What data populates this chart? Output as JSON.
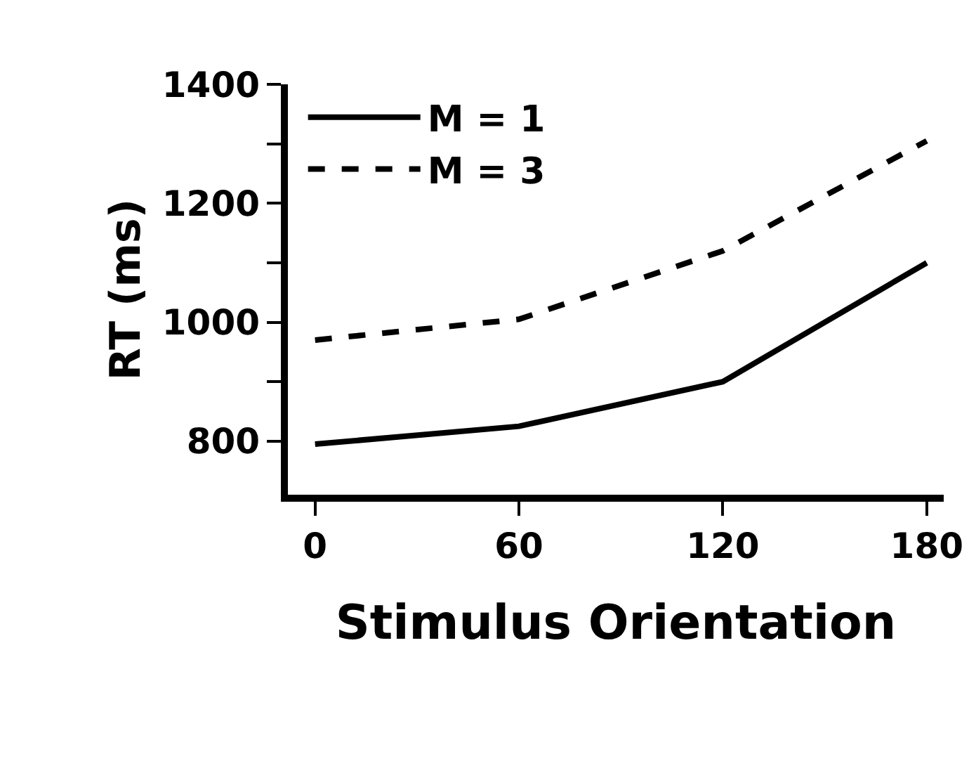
{
  "chart_data": {
    "type": "line",
    "xlabel": "Stimulus Orientation",
    "ylabel": "RT (ms)",
    "x": [
      0,
      60,
      120,
      180
    ],
    "series": [
      {
        "name": "M = 1",
        "color": "#000000",
        "values": [
          795,
          825,
          900,
          1100
        ],
        "line_style": "solid"
      },
      {
        "name": "M = 3",
        "color": "#000000",
        "values": [
          970,
          1005,
          1120,
          1305
        ],
        "line_style": "dashed"
      }
    ],
    "xlim": [
      -8,
      185
    ],
    "xticks": [
      0,
      60,
      120,
      180
    ],
    "ylim": [
      710,
      1400
    ],
    "yticks": [
      800,
      {
        "value": 900,
        "label": null
      },
      1000,
      {
        "value": 1100,
        "label": null
      },
      1200,
      {
        "value": 1300,
        "label": null
      },
      1400
    ],
    "legend": "top left",
    "marker": "none"
  }
}
